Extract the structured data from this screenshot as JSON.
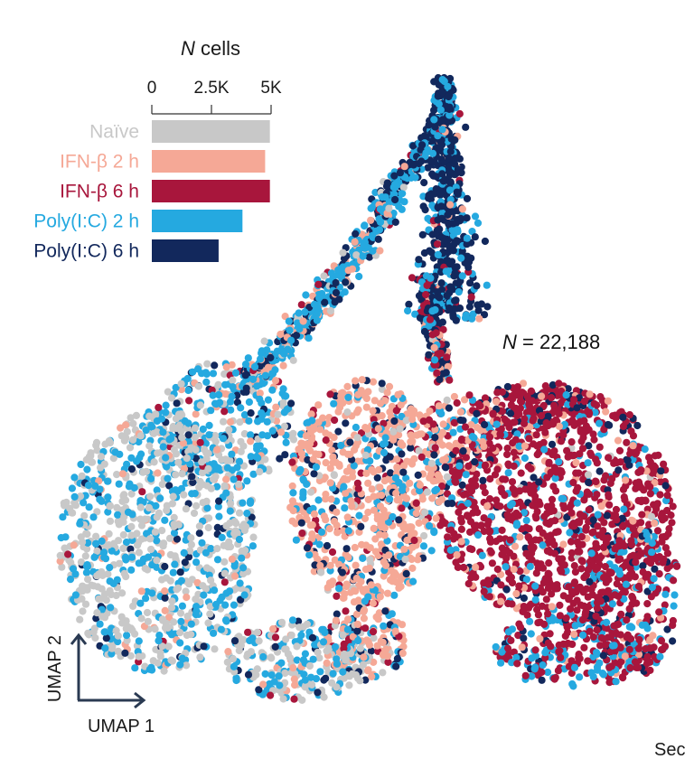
{
  "chart_data": [
    {
      "type": "bar",
      "orientation": "horizontal",
      "title_italic": "N",
      "title_rest": " cells",
      "xlim": [
        0,
        5000
      ],
      "ticks": [
        {
          "value": 0,
          "label": "0"
        },
        {
          "value": 2500,
          "label": "2.5K"
        },
        {
          "value": 5000,
          "label": "5K"
        }
      ],
      "categories": [
        "Naïve",
        "IFN-β 2 h",
        "IFN-β 6 h",
        "Poly(I:C) 2 h",
        "Poly(I:C) 6 h"
      ],
      "values": [
        4950,
        4750,
        4950,
        3800,
        2800
      ],
      "colors": [
        "#c8c8c8",
        "#f5a896",
        "#a8163c",
        "#25a9e0",
        "#12285c"
      ]
    },
    {
      "type": "scatter",
      "xlabel": "UMAP 1",
      "ylabel": "UMAP 2",
      "annotation_italic": "N",
      "annotation_rest": " = 22,188",
      "legend": "top-left",
      "groups": [
        "Naïve",
        "IFN-β 2 h",
        "IFN-β 6 h",
        "Poly(I:C) 2 h",
        "Poly(I:C) 6 h"
      ],
      "colors": [
        "#c8c8c8",
        "#f5a896",
        "#a8163c",
        "#25a9e0",
        "#12285c"
      ]
    }
  ],
  "footer": {
    "partial_text": "Sec"
  }
}
